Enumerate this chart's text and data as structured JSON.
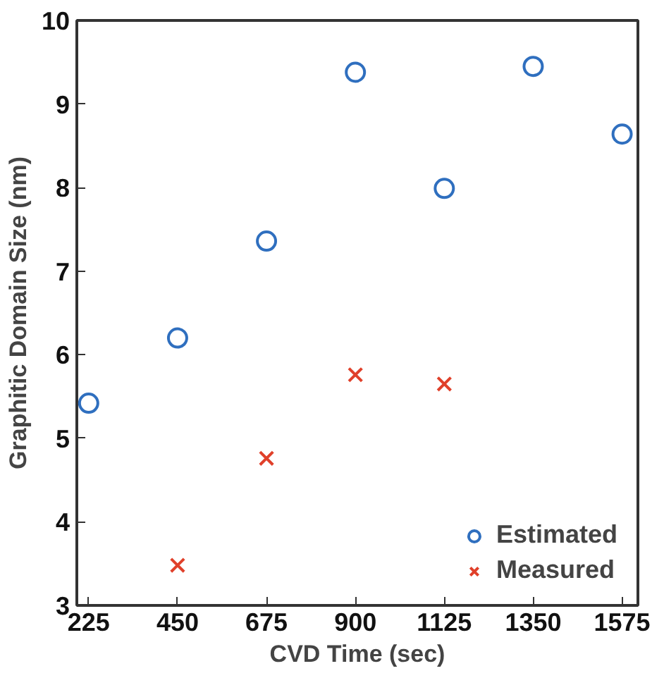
{
  "chart_data": {
    "type": "scatter",
    "xlabel": "CVD Time (sec)",
    "ylabel": "Graphitic Domain Size (nm)",
    "xlim": [
      195,
      1615
    ],
    "ylim": [
      3,
      10
    ],
    "xticks": [
      225,
      450,
      675,
      900,
      1125,
      1350,
      1575
    ],
    "yticks": [
      3,
      4,
      5,
      6,
      7,
      8,
      9,
      10
    ],
    "grid": false,
    "legend": "bottom right",
    "series": [
      {
        "name": "Estimated",
        "color": "#2f6fbf",
        "marker": "circle",
        "x": [
          225,
          450,
          675,
          900,
          1125,
          1350,
          1575
        ],
        "values": [
          5.42,
          6.2,
          7.36,
          9.38,
          7.99,
          9.45,
          8.64
        ]
      },
      {
        "name": "Measured",
        "color": "#e0402a",
        "marker": "cross",
        "x": [
          450,
          675,
          900,
          1125
        ],
        "values": [
          3.48,
          4.76,
          5.76,
          5.65
        ]
      }
    ]
  }
}
